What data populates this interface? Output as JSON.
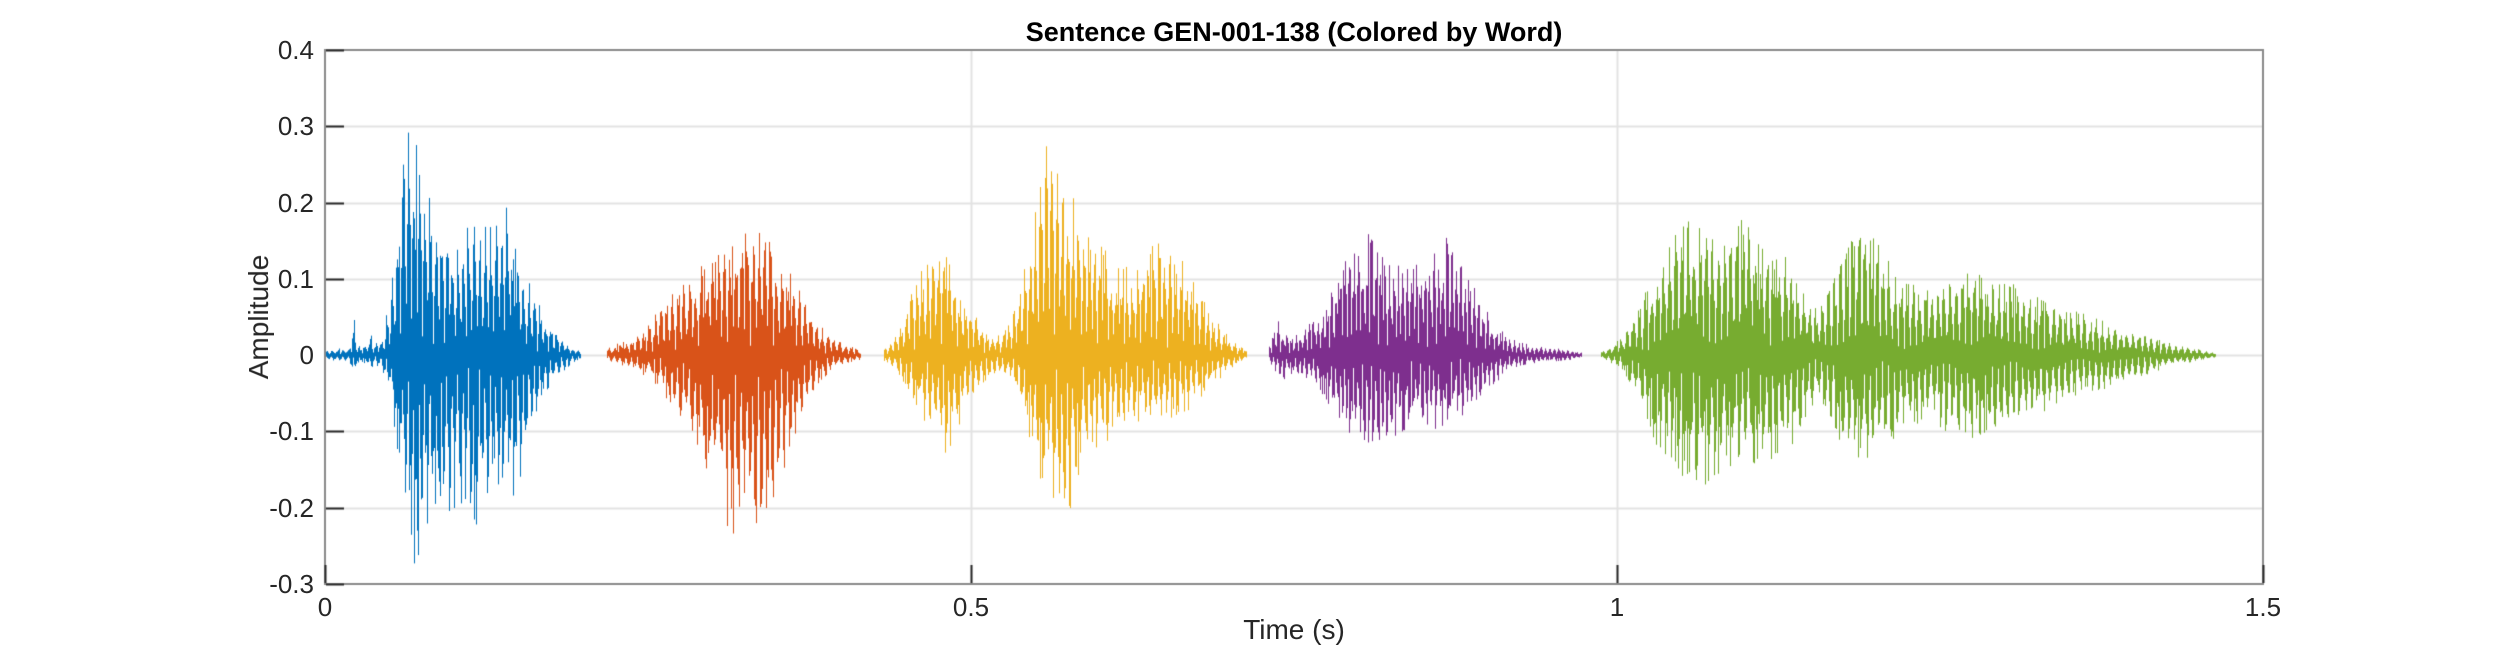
{
  "chart_data": {
    "type": "line",
    "subtype": "audio-waveform-colored-by-word",
    "title": "Sentence GEN-001-138 (Colored by Word)",
    "xlabel": "Time (s)",
    "ylabel": "Amplitude",
    "xlim": [
      0,
      1.5
    ],
    "ylim": [
      -0.3,
      0.4
    ],
    "grid": "on",
    "legend": "none",
    "x_ticks": [
      {
        "v": 0,
        "label": "0"
      },
      {
        "v": 0.5,
        "label": "0.5"
      },
      {
        "v": 1,
        "label": "1"
      },
      {
        "v": 1.5,
        "label": "1.5"
      }
    ],
    "y_ticks": [
      {
        "v": 0.4,
        "label": "0.4"
      },
      {
        "v": 0.3,
        "label": "0.3"
      },
      {
        "v": 0.2,
        "label": "0.2"
      },
      {
        "v": 0.1,
        "label": "0.1"
      },
      {
        "v": 0,
        "label": "0"
      },
      {
        "v": -0.1,
        "label": "-0.1"
      },
      {
        "v": -0.2,
        "label": "-0.2"
      },
      {
        "v": -0.3,
        "label": "-0.3"
      }
    ],
    "colors": {
      "background": "#ffffff",
      "box": "#8a8a8a",
      "grid": "#e3e3e3",
      "tick_mark": "#262626",
      "tick_label": "#262626",
      "axis_label": "#262626",
      "title": "#000000"
    },
    "series": [
      {
        "name": "word-1",
        "color": "#0072BD",
        "t_start": 0.001,
        "t_end": 0.197,
        "f0_hz": 118,
        "seed": 11,
        "peak": 0.32,
        "trough": -0.295,
        "envelope": [
          [
            0.001,
            0.006,
            -0.006
          ],
          [
            0.01,
            0.009,
            -0.008
          ],
          [
            0.019,
            0.011,
            -0.009
          ],
          [
            0.022,
            0.055,
            -0.032
          ],
          [
            0.025,
            0.012,
            -0.01
          ],
          [
            0.032,
            0.015,
            -0.012
          ],
          [
            0.035,
            0.036,
            -0.022
          ],
          [
            0.038,
            0.014,
            -0.012
          ],
          [
            0.044,
            0.024,
            -0.02
          ],
          [
            0.05,
            0.08,
            -0.055
          ],
          [
            0.056,
            0.19,
            -0.13
          ],
          [
            0.062,
            0.305,
            -0.23
          ],
          [
            0.068,
            0.32,
            -0.295
          ],
          [
            0.074,
            0.255,
            -0.27
          ],
          [
            0.082,
            0.215,
            -0.215
          ],
          [
            0.09,
            0.165,
            -0.2
          ],
          [
            0.098,
            0.17,
            -0.225
          ],
          [
            0.106,
            0.155,
            -0.205
          ],
          [
            0.114,
            0.195,
            -0.235
          ],
          [
            0.122,
            0.165,
            -0.215
          ],
          [
            0.13,
            0.18,
            -0.185
          ],
          [
            0.138,
            0.22,
            -0.165
          ],
          [
            0.146,
            0.155,
            -0.195
          ],
          [
            0.153,
            0.12,
            -0.145
          ],
          [
            0.16,
            0.085,
            -0.095
          ],
          [
            0.168,
            0.058,
            -0.062
          ],
          [
            0.176,
            0.038,
            -0.038
          ],
          [
            0.184,
            0.022,
            -0.022
          ],
          [
            0.191,
            0.012,
            -0.012
          ],
          [
            0.197,
            0.005,
            -0.005
          ]
        ]
      },
      {
        "name": "word-2",
        "color": "#D95319",
        "t_start": 0.218,
        "t_end": 0.414,
        "f0_hz": 112,
        "seed": 22,
        "peak": 0.18,
        "trough": -0.265,
        "envelope": [
          [
            0.218,
            0.01,
            -0.009
          ],
          [
            0.227,
            0.016,
            -0.013
          ],
          [
            0.236,
            0.022,
            -0.018
          ],
          [
            0.246,
            0.032,
            -0.026
          ],
          [
            0.256,
            0.055,
            -0.04
          ],
          [
            0.266,
            0.085,
            -0.062
          ],
          [
            0.276,
            0.1,
            -0.088
          ],
          [
            0.286,
            0.112,
            -0.115
          ],
          [
            0.296,
            0.125,
            -0.155
          ],
          [
            0.306,
            0.14,
            -0.205
          ],
          [
            0.315,
            0.15,
            -0.265
          ],
          [
            0.323,
            0.168,
            -0.232
          ],
          [
            0.331,
            0.18,
            -0.222
          ],
          [
            0.339,
            0.172,
            -0.242
          ],
          [
            0.347,
            0.158,
            -0.205
          ],
          [
            0.355,
            0.128,
            -0.155
          ],
          [
            0.363,
            0.098,
            -0.112
          ],
          [
            0.371,
            0.072,
            -0.072
          ],
          [
            0.38,
            0.046,
            -0.042
          ],
          [
            0.39,
            0.026,
            -0.022
          ],
          [
            0.401,
            0.016,
            -0.013
          ],
          [
            0.414,
            0.006,
            -0.006
          ]
        ]
      },
      {
        "name": "word-3",
        "color": "#EDB120",
        "t_start": 0.433,
        "t_end": 0.713,
        "f0_hz": 120,
        "seed": 33,
        "peak": 0.3,
        "trough": -0.215,
        "envelope": [
          [
            0.433,
            0.009,
            -0.008
          ],
          [
            0.441,
            0.024,
            -0.018
          ],
          [
            0.449,
            0.058,
            -0.04
          ],
          [
            0.457,
            0.098,
            -0.068
          ],
          [
            0.465,
            0.13,
            -0.092
          ],
          [
            0.473,
            0.16,
            -0.108
          ],
          [
            0.481,
            0.132,
            -0.132
          ],
          [
            0.489,
            0.102,
            -0.098
          ],
          [
            0.497,
            0.072,
            -0.066
          ],
          [
            0.505,
            0.046,
            -0.046
          ],
          [
            0.513,
            0.032,
            -0.03
          ],
          [
            0.521,
            0.026,
            -0.022
          ],
          [
            0.529,
            0.04,
            -0.03
          ],
          [
            0.537,
            0.092,
            -0.062
          ],
          [
            0.545,
            0.165,
            -0.115
          ],
          [
            0.553,
            0.245,
            -0.165
          ],
          [
            0.561,
            0.3,
            -0.195
          ],
          [
            0.569,
            0.262,
            -0.215
          ],
          [
            0.577,
            0.222,
            -0.2
          ],
          [
            0.585,
            0.192,
            -0.162
          ],
          [
            0.593,
            0.162,
            -0.142
          ],
          [
            0.601,
            0.148,
            -0.122
          ],
          [
            0.609,
            0.132,
            -0.106
          ],
          [
            0.617,
            0.118,
            -0.096
          ],
          [
            0.625,
            0.112,
            -0.092
          ],
          [
            0.633,
            0.13,
            -0.088
          ],
          [
            0.641,
            0.146,
            -0.092
          ],
          [
            0.649,
            0.156,
            -0.096
          ],
          [
            0.657,
            0.142,
            -0.088
          ],
          [
            0.665,
            0.122,
            -0.078
          ],
          [
            0.673,
            0.098,
            -0.066
          ],
          [
            0.681,
            0.072,
            -0.052
          ],
          [
            0.689,
            0.048,
            -0.038
          ],
          [
            0.697,
            0.03,
            -0.024
          ],
          [
            0.705,
            0.016,
            -0.013
          ],
          [
            0.713,
            0.006,
            -0.006
          ]
        ]
      },
      {
        "name": "word-4",
        "color": "#7E2F8E",
        "t_start": 0.731,
        "t_end": 0.972,
        "f0_hz": 145,
        "seed": 44,
        "peak": 0.165,
        "trough": -0.122,
        "envelope": [
          [
            0.731,
            0.012,
            -0.009
          ],
          [
            0.737,
            0.048,
            -0.026
          ],
          [
            0.742,
            0.032,
            -0.032
          ],
          [
            0.749,
            0.026,
            -0.024
          ],
          [
            0.757,
            0.036,
            -0.032
          ],
          [
            0.765,
            0.046,
            -0.042
          ],
          [
            0.773,
            0.062,
            -0.056
          ],
          [
            0.781,
            0.092,
            -0.076
          ],
          [
            0.789,
            0.122,
            -0.096
          ],
          [
            0.797,
            0.148,
            -0.112
          ],
          [
            0.805,
            0.162,
            -0.122
          ],
          [
            0.813,
            0.152,
            -0.116
          ],
          [
            0.821,
            0.136,
            -0.112
          ],
          [
            0.829,
            0.126,
            -0.106
          ],
          [
            0.837,
            0.122,
            -0.1
          ],
          [
            0.845,
            0.126,
            -0.096
          ],
          [
            0.853,
            0.132,
            -0.1
          ],
          [
            0.861,
            0.142,
            -0.096
          ],
          [
            0.869,
            0.165,
            -0.092
          ],
          [
            0.877,
            0.132,
            -0.086
          ],
          [
            0.885,
            0.106,
            -0.076
          ],
          [
            0.893,
            0.082,
            -0.062
          ],
          [
            0.901,
            0.056,
            -0.046
          ],
          [
            0.909,
            0.036,
            -0.032
          ],
          [
            0.917,
            0.022,
            -0.019
          ],
          [
            0.929,
            0.015,
            -0.013
          ],
          [
            0.943,
            0.011,
            -0.01
          ],
          [
            0.957,
            0.009,
            -0.008
          ],
          [
            0.972,
            0.004,
            -0.004
          ]
        ]
      },
      {
        "name": "word-5",
        "color": "#77AC30",
        "t_start": 0.988,
        "t_end": 1.463,
        "f0_hz": 106,
        "seed": 55,
        "peak": 0.19,
        "trough": -0.185,
        "envelope": [
          [
            0.988,
            0.006,
            -0.006
          ],
          [
            0.996,
            0.013,
            -0.011
          ],
          [
            1.004,
            0.026,
            -0.022
          ],
          [
            1.012,
            0.052,
            -0.046
          ],
          [
            1.021,
            0.082,
            -0.082
          ],
          [
            1.03,
            0.112,
            -0.122
          ],
          [
            1.04,
            0.152,
            -0.142
          ],
          [
            1.05,
            0.178,
            -0.162
          ],
          [
            1.06,
            0.19,
            -0.185
          ],
          [
            1.07,
            0.168,
            -0.172
          ],
          [
            1.08,
            0.152,
            -0.156
          ],
          [
            1.09,
            0.166,
            -0.146
          ],
          [
            1.1,
            0.19,
            -0.14
          ],
          [
            1.11,
            0.152,
            -0.15
          ],
          [
            1.12,
            0.142,
            -0.136
          ],
          [
            1.13,
            0.132,
            -0.126
          ],
          [
            1.14,
            0.116,
            -0.112
          ],
          [
            1.148,
            0.088,
            -0.078
          ],
          [
            1.156,
            0.062,
            -0.056
          ],
          [
            1.164,
            0.092,
            -0.082
          ],
          [
            1.172,
            0.132,
            -0.112
          ],
          [
            1.181,
            0.156,
            -0.132
          ],
          [
            1.19,
            0.162,
            -0.142
          ],
          [
            1.2,
            0.152,
            -0.132
          ],
          [
            1.21,
            0.132,
            -0.116
          ],
          [
            1.22,
            0.112,
            -0.102
          ],
          [
            1.23,
            0.096,
            -0.092
          ],
          [
            1.24,
            0.092,
            -0.086
          ],
          [
            1.25,
            0.102,
            -0.096
          ],
          [
            1.26,
            0.112,
            -0.106
          ],
          [
            1.27,
            0.122,
            -0.112
          ],
          [
            1.28,
            0.116,
            -0.106
          ],
          [
            1.29,
            0.106,
            -0.102
          ],
          [
            1.3,
            0.096,
            -0.096
          ],
          [
            1.31,
            0.092,
            -0.092
          ],
          [
            1.321,
            0.086,
            -0.086
          ],
          [
            1.335,
            0.072,
            -0.072
          ],
          [
            1.35,
            0.06,
            -0.06
          ],
          [
            1.365,
            0.052,
            -0.052
          ],
          [
            1.38,
            0.044,
            -0.044
          ],
          [
            1.395,
            0.034,
            -0.034
          ],
          [
            1.41,
            0.026,
            -0.026
          ],
          [
            1.425,
            0.017,
            -0.017
          ],
          [
            1.44,
            0.011,
            -0.011
          ],
          [
            1.452,
            0.007,
            -0.007
          ],
          [
            1.463,
            0.003,
            -0.003
          ]
        ]
      }
    ]
  }
}
